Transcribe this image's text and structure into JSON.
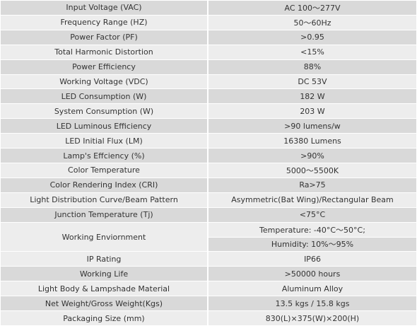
{
  "table": {
    "rows": [
      [
        "Input Voltage (VAC)",
        "AC 100～277V"
      ],
      [
        "Frequency Range (HZ)",
        "50～60Hz"
      ],
      [
        "Power Factor (PF)",
        ">0.95"
      ],
      [
        "Total Harmonic Distortion",
        "<15%"
      ],
      [
        "Power Efficiency",
        "88%"
      ],
      [
        "Working Voltage (VDC)",
        "DC 53V"
      ],
      [
        "LED Consumption (W)",
        "182 W"
      ],
      [
        "System Consumption (W)",
        "203 W"
      ],
      [
        "LED Luminous Efficiency",
        ">90 lumens/w"
      ],
      [
        "LED Initial Flux (LM)",
        "16380 Lumens"
      ],
      [
        "Lamp's Effciency (%)",
        ">90%"
      ],
      [
        "Color Temperature",
        "5000～5500K"
      ],
      [
        "Color Rendering Index (CRI)",
        "Ra>75"
      ],
      [
        "Light Distribution Curve/Beam Pattern",
        "Asymmetric(Bat Wing)/Rectangular Beam"
      ],
      [
        "Junction Temperature (Tj)",
        "<75°C"
      ],
      [
        "Working Enviornment",
        "Temperature: -40°C～50°C;",
        "Humidity: 10%～95%"
      ],
      [
        "IP Rating",
        "IP66"
      ],
      [
        "Working Life",
        ">50000 hours"
      ],
      [
        "Light Body & Lampshade Material",
        "Aluminum Alloy"
      ],
      [
        "Net Weight/Gross Weight(Kgs)",
        "13.5 kgs / 15.8 kgs"
      ],
      [
        "Packaging Size (mm)",
        "830(L)×375(W)×200(H)"
      ]
    ]
  }
}
